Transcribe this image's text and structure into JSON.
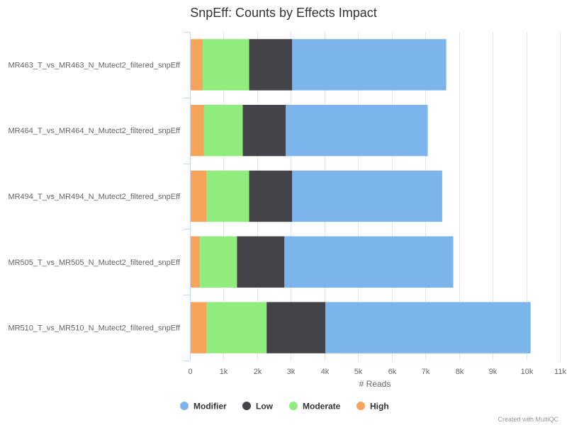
{
  "chart_data": {
    "type": "bar",
    "orientation": "horizontal",
    "stacked": true,
    "title": "SnpEff: Counts by Effects Impact",
    "xlabel": "# Reads",
    "ylabel": "",
    "xlim": [
      0,
      11000
    ],
    "x_ticks": [
      0,
      1000,
      2000,
      3000,
      4000,
      5000,
      6000,
      7000,
      8000,
      9000,
      10000,
      11000
    ],
    "x_tick_labels": [
      "0",
      "1k",
      "2k",
      "3k",
      "4k",
      "5k",
      "6k",
      "7k",
      "8k",
      "9k",
      "10k",
      "11k"
    ],
    "grid": true,
    "legend_position": "bottom",
    "categories": [
      "MR463_T_vs_MR463_N_Mutect2_filtered_snpEff",
      "MR464_T_vs_MR464_N_Mutect2_filtered_snpEff",
      "MR494_T_vs_MR494_N_Mutect2_filtered_snpEff",
      "MR505_T_vs_MR505_N_Mutect2_filtered_snpEff",
      "MR510_T_vs_MR510_N_Mutect2_filtered_snpEff"
    ],
    "series": [
      {
        "name": "High",
        "color": "#f7a35c",
        "values": [
          380,
          420,
          500,
          300,
          500
        ]
      },
      {
        "name": "Moderate",
        "color": "#90ed7d",
        "values": [
          1380,
          1150,
          1260,
          1100,
          1780
        ]
      },
      {
        "name": "Low",
        "color": "#434348",
        "values": [
          1280,
          1280,
          1280,
          1410,
          1750
        ]
      },
      {
        "name": "Modifier",
        "color": "#7cb5ec",
        "values": [
          4580,
          4220,
          4460,
          5020,
          6100
        ]
      }
    ],
    "legend_order": [
      "Modifier",
      "Low",
      "Moderate",
      "High"
    ]
  },
  "credit": "Created with MultiQC"
}
